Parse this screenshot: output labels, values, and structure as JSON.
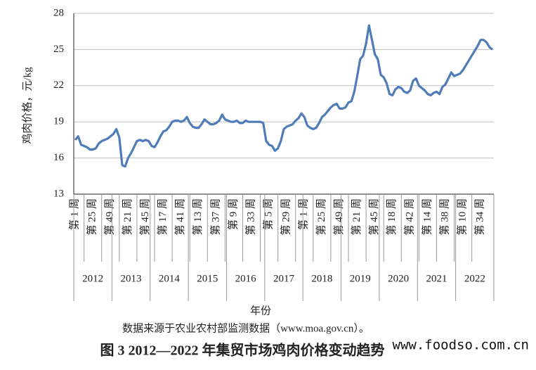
{
  "chart_data": {
    "type": "line",
    "ylabel": "鸡肉价格，元/kg",
    "xlabel": "年份",
    "source": "数据来源于农业农村部监测数据（www.moa.gov.cn）。",
    "caption": "图 3 2012—2022 年集贸市场鸡肉价格变动趋势",
    "watermark": "www.foodso.com.cn",
    "ylim": [
      13,
      28
    ],
    "yticks": [
      13,
      16,
      19,
      22,
      25,
      28
    ],
    "grid": true,
    "years": [
      "2012",
      "2013",
      "2014",
      "2015",
      "2016",
      "2017",
      "2018",
      "2019",
      "2020",
      "2021",
      "2022"
    ],
    "categories": [
      "第 1 周",
      null,
      null,
      null,
      null,
      null,
      "第 25 周",
      null,
      null,
      null,
      null,
      null,
      "第 49 周",
      null,
      null,
      null,
      null,
      null,
      "第 21 周",
      null,
      null,
      null,
      null,
      null,
      "第 45 周",
      null,
      null,
      null,
      null,
      null,
      "第 17 周",
      null,
      null,
      null,
      null,
      null,
      "第 41 周",
      null,
      null,
      null,
      null,
      null,
      "第 13 周",
      null,
      null,
      null,
      null,
      null,
      "第 37 周",
      null,
      null,
      null,
      null,
      null,
      "第 9 周",
      null,
      null,
      null,
      null,
      null,
      "第 33 周",
      null,
      null,
      null,
      null,
      null,
      "第 5 周",
      null,
      null,
      null,
      null,
      null,
      "第 29 周",
      null,
      null,
      null,
      null,
      null,
      "第 1 周",
      null,
      null,
      null,
      null,
      null,
      "第 25 周",
      null,
      null,
      null,
      null,
      null,
      "第 49 周",
      null,
      null,
      null,
      null,
      null,
      "第 21 周",
      null,
      null,
      null,
      null,
      null,
      "第 45 周",
      null,
      null,
      null,
      null,
      null,
      "第 18 周",
      null,
      null,
      null,
      null,
      null,
      "第 42 周",
      null,
      null,
      null,
      null,
      null,
      "第 14 周",
      null,
      null,
      null,
      null,
      null,
      "第 38 周",
      null,
      null,
      null,
      null,
      null,
      "第 10 周",
      null,
      null,
      null,
      null,
      null,
      "第 34 周",
      null,
      null,
      null,
      null
    ],
    "series": [
      {
        "color": "#4f7cb9",
        "values": [
          17.5,
          17.8,
          17.1,
          17.0,
          16.9,
          16.7,
          16.7,
          16.8,
          17.2,
          17.4,
          17.5,
          17.6,
          17.8,
          18.0,
          18.4,
          17.7,
          15.4,
          15.3,
          16.0,
          16.4,
          16.9,
          17.4,
          17.5,
          17.4,
          17.5,
          17.4,
          17.0,
          16.9,
          17.3,
          17.8,
          18.2,
          18.3,
          18.6,
          19.0,
          19.1,
          19.1,
          19.0,
          19.1,
          19.4,
          18.9,
          18.6,
          18.5,
          18.5,
          18.8,
          19.2,
          19.0,
          18.8,
          18.8,
          18.9,
          19.1,
          19.6,
          19.2,
          19.1,
          19.0,
          19.0,
          19.1,
          18.9,
          18.9,
          19.1,
          19.0,
          19.0,
          19.0,
          19.0,
          19.0,
          18.9,
          17.4,
          17.1,
          17.0,
          16.6,
          16.8,
          17.4,
          18.4,
          18.6,
          18.7,
          18.8,
          19.1,
          19.3,
          19.7,
          19.4,
          18.7,
          18.5,
          18.4,
          18.5,
          18.9,
          19.4,
          19.6,
          19.9,
          20.2,
          20.4,
          20.5,
          20.1,
          20.1,
          20.2,
          20.6,
          20.7,
          21.5,
          22.8,
          24.2,
          24.5,
          25.5,
          27.0,
          25.8,
          24.6,
          24.2,
          22.9,
          22.7,
          22.2,
          21.3,
          21.2,
          21.7,
          21.9,
          21.8,
          21.5,
          21.4,
          21.6,
          22.4,
          22.6,
          22.0,
          21.8,
          21.6,
          21.3,
          21.2,
          21.4,
          21.5,
          21.3,
          21.9,
          22.1,
          22.6,
          23.1,
          22.8,
          22.9,
          23.0,
          23.3,
          23.7,
          24.1,
          24.5,
          24.9,
          25.3,
          25.8,
          25.8,
          25.6,
          25.2,
          25.0
        ]
      }
    ]
  }
}
